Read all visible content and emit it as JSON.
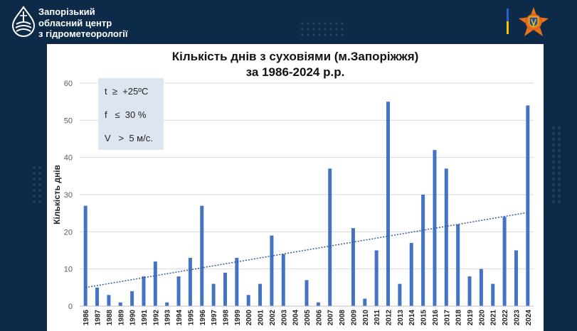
{
  "header": {
    "org_line1": "Запорізький",
    "org_line2": "обласний центр",
    "org_line3": "з гідрометеорології",
    "logo_icon": "hydromet-drop-icon",
    "emblem_icon": "emergency-service-emblem-icon",
    "flag_colors": [
      "#2a63c7",
      "#f5c400"
    ]
  },
  "chart_data": {
    "type": "bar",
    "title_line1": "Кількість днів з суховіями (м.Запоріжжя)",
    "title_line2": "за 1986-2024 р.р.",
    "xlabel": "",
    "ylabel": "Кількість днів",
    "ylim": [
      0,
      60
    ],
    "yticks": [
      "0",
      "10",
      "20",
      "30",
      "40",
      "50",
      "60"
    ],
    "grid": true,
    "trendline": {
      "type": "linear",
      "style": "dotted",
      "start": 5,
      "end": 25.2
    },
    "categories": [
      "1986",
      "1987",
      "1988",
      "1989",
      "1990",
      "1991",
      "1992",
      "1993",
      "1994",
      "1995",
      "1996",
      "1997",
      "1998",
      "1999",
      "2000",
      "2001",
      "2002",
      "2003",
      "2004",
      "2005",
      "2006",
      "2007",
      "2008",
      "2009",
      "2010",
      "2011",
      "2012",
      "2013",
      "2014",
      "2015",
      "2016",
      "2017",
      "2018",
      "2019",
      "2020",
      "2021",
      "2022",
      "2023",
      "2024"
    ],
    "values": [
      27,
      5,
      3,
      1,
      4,
      8,
      12,
      1,
      8,
      13,
      27,
      6,
      9,
      13,
      3,
      6,
      19,
      14,
      0,
      7,
      1,
      37,
      0,
      21,
      2,
      15,
      55,
      6,
      17,
      30,
      42,
      37,
      22,
      8,
      10,
      6,
      24,
      15,
      54
    ],
    "bar_color": "#4472c4",
    "trend_color": "#2e5d9f",
    "legend_lines": [
      "t  ≥  +25ºC",
      "f   ≤  30 %",
      "V   >  5 м/с."
    ]
  }
}
